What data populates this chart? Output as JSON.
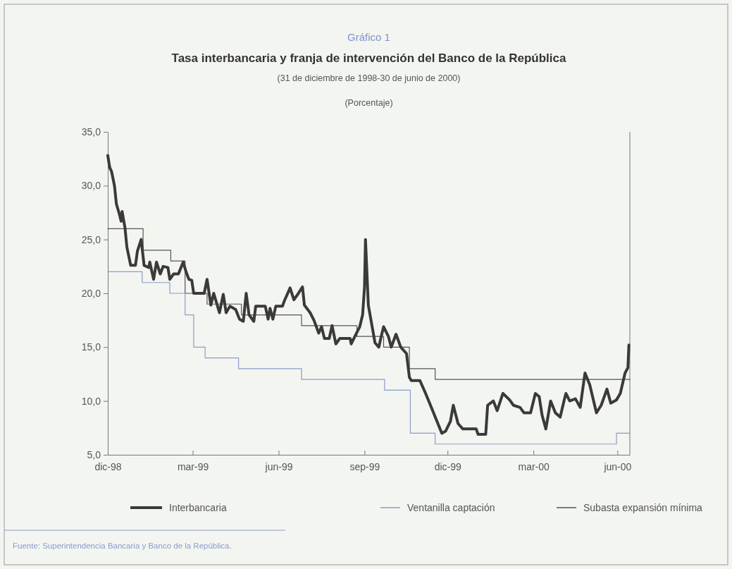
{
  "chart_data": {
    "type": "line",
    "title": "Tasa interbancaria y franja de intervención del Banco de la República",
    "subtitle": "(31 de diciembre de 1998-30 de junio de 2000)",
    "ylabel": "(Porcentaje)",
    "annotations": [
      "Gráfico 1",
      "Fuente: Superintendencia Bancaria y Banco de la República."
    ],
    "xlim": [
      "1998-12-31",
      "2000-06-30"
    ],
    "xticks": [
      {
        "value": "1998-12-31",
        "label": "dic-98"
      },
      {
        "value": "1999-03-30",
        "label": "mar-99"
      },
      {
        "value": "1999-06-28",
        "label": "jun-99"
      },
      {
        "value": "1999-09-26",
        "label": "sep-99"
      },
      {
        "value": "1999-12-22",
        "label": "dic-99"
      },
      {
        "value": "2000-03-21",
        "label": "mar-00"
      },
      {
        "value": "2000-06-17",
        "label": "jun-00"
      }
    ],
    "ylim": [
      5,
      35
    ],
    "yticks": [
      {
        "value": 5,
        "label": "5,0"
      },
      {
        "value": 10,
        "label": "10,0"
      },
      {
        "value": 15,
        "label": "15,0"
      },
      {
        "value": 20,
        "label": "20,0"
      },
      {
        "value": 25,
        "label": "25,0"
      },
      {
        "value": 30,
        "label": "30,0"
      },
      {
        "value": 35,
        "label": "35,0"
      }
    ],
    "grid": false,
    "legend": "bottom",
    "series": [
      {
        "name": "Interbancaria",
        "color": "#3a3a3a",
        "x": [
          "1998-12-31",
          "1999-01-02",
          "1999-01-04",
          "1999-01-07",
          "1999-01-09",
          "1999-01-12",
          "1999-01-14",
          "1999-01-15",
          "1999-01-18",
          "1999-01-20",
          "1999-01-24",
          "1999-01-29",
          "1999-01-31",
          "1999-02-04",
          "1999-02-07",
          "1999-02-12",
          "1999-02-13",
          "1999-02-17",
          "1999-02-20",
          "1999-02-24",
          "1999-02-27",
          "1999-03-04",
          "1999-03-06",
          "1999-03-10",
          "1999-03-15",
          "1999-03-20",
          "1999-03-23",
          "1999-03-26",
          "1999-03-29",
          "1999-03-31",
          "1999-04-11",
          "1999-04-14",
          "1999-04-18",
          "1999-04-21",
          "1999-04-27",
          "1999-05-01",
          "1999-05-04",
          "1999-05-08",
          "1999-05-14",
          "1999-05-18",
          "1999-05-22",
          "1999-05-25",
          "1999-05-28",
          "1999-06-02",
          "1999-06-04",
          "1999-06-14",
          "1999-06-17",
          "1999-06-19",
          "1999-06-22",
          "1999-06-25",
          "1999-07-02",
          "1999-07-04",
          "1999-07-10",
          "1999-07-14",
          "1999-07-18",
          "1999-07-23",
          "1999-07-25",
          "1999-07-31",
          "1999-08-04",
          "1999-08-09",
          "1999-08-12",
          "1999-08-15",
          "1999-08-20",
          "1999-08-23",
          "1999-08-27",
          "1999-08-31",
          "1999-09-11",
          "1999-09-12",
          "1999-09-17",
          "1999-09-21",
          "1999-09-24",
          "1999-09-26",
          "1999-09-27",
          "1999-09-30",
          "1999-10-07",
          "1999-10-11",
          "1999-10-13",
          "1999-10-16",
          "1999-10-21",
          "1999-10-24",
          "1999-10-29",
          "1999-11-03",
          "1999-11-09",
          "1999-11-12",
          "1999-11-14",
          "1999-11-23",
          "1999-11-29",
          "1999-12-05",
          "1999-12-10",
          "1999-12-16",
          "1999-12-20",
          "1999-12-25",
          "1999-12-28",
          "2000-01-02",
          "2000-01-07",
          "2000-01-11",
          "2000-01-21",
          "2000-01-23",
          "2000-01-31",
          "2000-02-02",
          "2000-02-08",
          "2000-02-12",
          "2000-02-18",
          "2000-02-25",
          "2000-02-29",
          "2000-03-07",
          "2000-03-11",
          "2000-03-18",
          "2000-03-23",
          "2000-03-27",
          "2000-03-30",
          "2000-04-03",
          "2000-04-08",
          "2000-04-13",
          "2000-04-18",
          "2000-04-22",
          "2000-04-24",
          "2000-04-28",
          "2000-05-04",
          "2000-05-09",
          "2000-05-14",
          "2000-05-19",
          "2000-05-26",
          "2000-05-31",
          "2000-06-06",
          "2000-06-10",
          "2000-06-16",
          "2000-06-20",
          "2000-06-25",
          "2000-06-28",
          "2000-06-29"
        ],
        "values": [
          32.8,
          31.7,
          31.3,
          30.0,
          28.3,
          27.4,
          26.7,
          27.6,
          26.1,
          24.3,
          22.6,
          22.6,
          23.9,
          25.0,
          22.6,
          22.4,
          22.9,
          21.3,
          22.9,
          21.8,
          22.5,
          22.4,
          21.3,
          21.8,
          21.8,
          22.9,
          22.0,
          21.3,
          21.2,
          20.0,
          20.0,
          21.3,
          18.9,
          20.0,
          18.2,
          19.9,
          18.2,
          18.8,
          18.5,
          17.6,
          17.4,
          20.0,
          18.0,
          17.4,
          18.8,
          18.8,
          17.6,
          18.6,
          17.6,
          18.8,
          18.8,
          19.3,
          20.5,
          19.4,
          19.9,
          20.6,
          18.9,
          18.2,
          17.5,
          16.3,
          16.9,
          15.8,
          15.8,
          17.0,
          15.3,
          15.8,
          15.8,
          15.3,
          16.2,
          16.9,
          18.0,
          20.6,
          25.0,
          18.9,
          15.4,
          15.0,
          15.8,
          16.9,
          16.0,
          15.0,
          16.2,
          15.0,
          14.4,
          12.2,
          11.9,
          11.9,
          10.7,
          9.4,
          8.3,
          7.0,
          7.2,
          8.1,
          9.6,
          7.9,
          7.4,
          7.4,
          7.4,
          6.9,
          6.9,
          9.6,
          10.0,
          9.1,
          10.7,
          10.1,
          9.6,
          9.4,
          8.9,
          8.9,
          10.7,
          10.4,
          8.7,
          7.4,
          10.0,
          8.9,
          8.5,
          10.0,
          10.7,
          10.0,
          10.2,
          9.4,
          12.6,
          11.5,
          8.9,
          9.6,
          11.1,
          9.8,
          10.1,
          10.7,
          12.6,
          13.1,
          15.2
        ]
      },
      {
        "name": "Ventanilla captación",
        "type": "step",
        "color": "#8a9ccc",
        "x": [
          "1998-12-31",
          "1999-02-05",
          "1999-03-06",
          "1999-03-22",
          "1999-03-31",
          "1999-04-12",
          "1999-05-17",
          "1999-07-22",
          "1999-10-17",
          "1999-11-13",
          "1999-12-09",
          "2000-06-16",
          "2000-06-30"
        ],
        "values": [
          22,
          21,
          20,
          18,
          15,
          14,
          13,
          12,
          11,
          7,
          6,
          7,
          7
        ]
      },
      {
        "name": "Subasta expansión mínima",
        "type": "step",
        "color": "#555555",
        "x": [
          "1998-12-31",
          "1999-02-06",
          "1999-03-07",
          "1999-03-22",
          "1999-04-14",
          "1999-05-20",
          "1999-07-22",
          "1999-09-18",
          "1999-10-16",
          "1999-11-12",
          "1999-12-09",
          "2000-06-30"
        ],
        "values": [
          26,
          24,
          23,
          20,
          19,
          18,
          17,
          16,
          15,
          13,
          12,
          12
        ]
      }
    ]
  }
}
